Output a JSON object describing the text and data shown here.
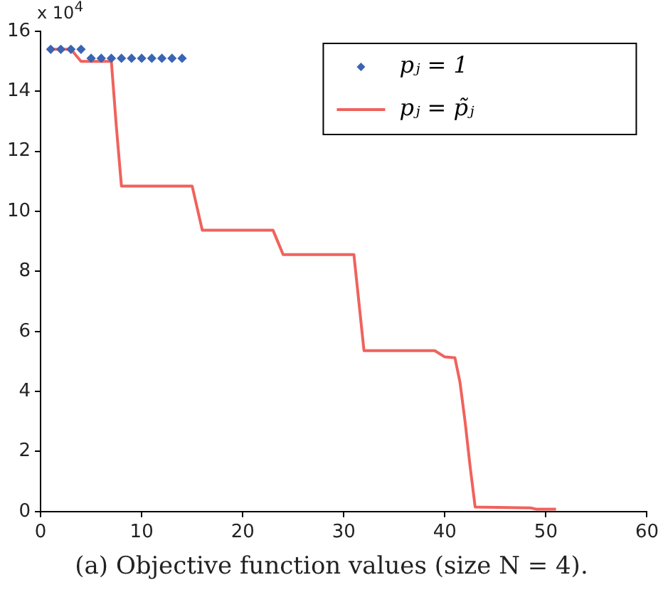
{
  "chart_data": {
    "type": "line",
    "annotations": [
      "x 10$^{4}$",
      "(a) Objective function values (size N = 4)."
    ],
    "xlim": [
      0,
      60
    ],
    "xticks": [
      0,
      10,
      20,
      30,
      40,
      50,
      60
    ],
    "ylim": [
      0,
      16
    ],
    "yticks": [
      0,
      2,
      4,
      6,
      8,
      10,
      12,
      14,
      16
    ],
    "grid": false,
    "legend": "top right",
    "series": [
      {
        "name": "pⱼ = 1",
        "type": "scatter",
        "marker": "diamond",
        "color": "#3b64b4",
        "x": [
          1,
          2,
          3,
          4,
          5,
          6,
          7,
          8,
          9,
          10,
          11,
          12,
          13,
          14
        ],
        "values": [
          15.4,
          15.4,
          15.4,
          15.4,
          15.1,
          15.1,
          15.1,
          15.1,
          15.1,
          15.1,
          15.1,
          15.1,
          15.1,
          15.1
        ]
      },
      {
        "name": "pⱼ = p̃ⱼ",
        "marker": "none",
        "line_style": "solid",
        "color": "#f0625c",
        "x": [
          1,
          3,
          4,
          7,
          7.5,
          8,
          15,
          16,
          23,
          24,
          31,
          32,
          39,
          40,
          41,
          41.5,
          42,
          42.5,
          43,
          48.5,
          49,
          51
        ],
        "values": [
          15.4,
          15.4,
          15.0,
          15.0,
          12.8,
          10.84,
          10.84,
          9.37,
          9.37,
          8.56,
          8.56,
          5.36,
          5.36,
          5.15,
          5.12,
          4.3,
          3.0,
          1.5,
          0.15,
          0.12,
          0.08,
          0.08
        ]
      }
    ]
  }
}
